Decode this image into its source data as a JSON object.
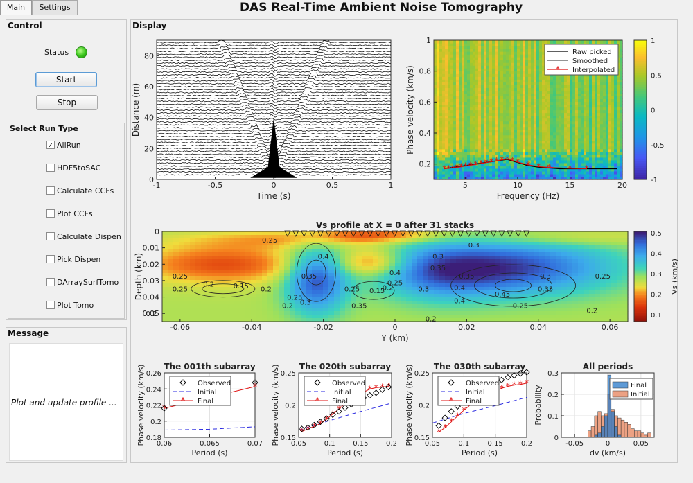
{
  "tabs": [
    {
      "label": "Main"
    },
    {
      "label": "Settings"
    }
  ],
  "app_title": "DAS Real-Time Ambient Noise Tomography",
  "control": {
    "title": "Control",
    "status_label": "Status",
    "status_color": "#39c51b",
    "start_label": "Start",
    "stop_label": "Stop",
    "runtype_title": "Select Run Type",
    "options": [
      {
        "label": "AllRun",
        "checked": true
      },
      {
        "label": "HDF5toSAC",
        "checked": false
      },
      {
        "label": "Calculate CCFs",
        "checked": false
      },
      {
        "label": "Plot CCFs",
        "checked": false
      },
      {
        "label": "Calculate Dispen",
        "checked": false
      },
      {
        "label": "Pick Dispen",
        "checked": false
      },
      {
        "label": "DArraySurfTomo",
        "checked": false
      },
      {
        "label": "Plot Tomo",
        "checked": false
      }
    ]
  },
  "message": {
    "title": "Message",
    "text": "Plot and update profile ..."
  },
  "display": {
    "title": "Display"
  },
  "chart_data": [
    {
      "type": "line",
      "id": "ccf",
      "title": "",
      "xlabel": "Time (s)",
      "ylabel": "Distance (m)",
      "xlim": [
        -1,
        1
      ],
      "ylim": [
        0,
        90
      ],
      "xticks": [
        "-1",
        "-0.5",
        "0",
        "0.5",
        "1"
      ],
      "yticks": [
        "0",
        "20",
        "40",
        "60",
        "80"
      ],
      "n_traces": 46
    },
    {
      "type": "heatmap",
      "id": "dispersion",
      "title": "",
      "xlabel": "Frequency (Hz)",
      "ylabel": "Phase velocity (km/s)",
      "xlim": [
        2,
        20
      ],
      "ylim": [
        0.1,
        1
      ],
      "xticks": [
        "5",
        "10",
        "15",
        "20"
      ],
      "yticks": [
        "0.2",
        "0.4",
        "0.6",
        "0.8",
        "1"
      ],
      "colorbar_ticks": [
        "1",
        "0.5",
        "0",
        "-0.5",
        "-1"
      ],
      "legend": [
        "Raw picked",
        "Smoothed",
        "Interpolated"
      ],
      "series": [
        {
          "name": "Raw picked",
          "x": [
            3,
            4,
            5,
            6,
            7,
            8,
            9,
            10,
            11,
            12,
            13,
            14,
            15,
            16,
            17,
            18,
            19.5
          ],
          "y": [
            0.17,
            0.18,
            0.19,
            0.2,
            0.21,
            0.22,
            0.23,
            0.21,
            0.19,
            0.18,
            0.175,
            0.17,
            0.17,
            0.17,
            0.17,
            0.17,
            0.17
          ]
        },
        {
          "name": "Interpolated",
          "x": [
            3,
            3.4,
            3.8,
            4.2,
            4.6,
            5,
            5.5,
            6,
            6.5,
            7,
            7.5,
            8,
            8.5,
            9,
            9.5,
            10,
            11,
            12,
            13,
            15,
            16.6
          ],
          "y": [
            0.17,
            0.172,
            0.175,
            0.178,
            0.182,
            0.187,
            0.192,
            0.197,
            0.203,
            0.209,
            0.215,
            0.221,
            0.227,
            0.232,
            0.224,
            0.212,
            0.195,
            0.183,
            0.178,
            0.172,
            0.17
          ]
        }
      ]
    },
    {
      "type": "heatmap",
      "id": "vs_profile",
      "title": "Vs profile at X = 0 after 31 stacks",
      "xlabel": "Y (km)",
      "ylabel": "Depth (km)",
      "xlim": [
        -0.065,
        0.065
      ],
      "ylim": [
        0.055,
        0
      ],
      "xticks": [
        "-0.06",
        "-0.04",
        "-0.02",
        "0",
        "0.02",
        "0.04",
        "0.06"
      ],
      "yticks": [
        "0",
        "0.01",
        "0.02",
        "0.03",
        "0.04",
        "0.05"
      ],
      "colorbar_label": "Vs (km/s)",
      "colorbar_ticks": [
        "0.5",
        "0.4",
        "0.3",
        "0.2",
        "0.1"
      ],
      "contour_labels": [
        "0.2",
        "0.2",
        "0.25",
        "0.25",
        "0.15",
        "0.2",
        "0.25",
        "0.3",
        "0.35",
        "0.4",
        "0.3",
        "0.35",
        "0.25",
        "0.2",
        "0.15",
        "0.25",
        "0.3",
        "0.35",
        "0.4",
        "0.4",
        "0.45",
        "0.35",
        "0.3",
        "0.25",
        "0.25",
        "0.2",
        "0.3",
        "0.35",
        "0.4",
        "0.25",
        "0.2",
        "0.2"
      ]
    },
    {
      "type": "line",
      "id": "sub001",
      "title": "The 001th subarray",
      "xlabel": "Period (s)",
      "ylabel": "Phase velocity (km/s)",
      "xlim": [
        0.06,
        0.07
      ],
      "ylim": [
        0.18,
        0.26
      ],
      "xticks": [
        "0.06",
        "0.065",
        "0.07"
      ],
      "yticks": [
        "0.18",
        "0.2",
        "0.22",
        "0.24",
        "0.26"
      ],
      "legend": [
        "Observed",
        "Initial",
        "Final"
      ],
      "series": [
        {
          "name": "Observed",
          "x": [
            0.06,
            0.07
          ],
          "y": [
            0.216,
            0.248
          ]
        },
        {
          "name": "Initial",
          "x": [
            0.06,
            0.065,
            0.07
          ],
          "y": [
            0.189,
            0.19,
            0.193
          ]
        },
        {
          "name": "Final",
          "x": [
            0.06,
            0.07
          ],
          "y": [
            0.216,
            0.243
          ]
        }
      ]
    },
    {
      "type": "line",
      "id": "sub020",
      "title": "The 020th subarray",
      "xlabel": "Period (s)",
      "ylabel": "Phase velocity (km/s)",
      "xlim": [
        0.05,
        0.2
      ],
      "ylim": [
        0.15,
        0.25
      ],
      "xticks": [
        "0.05",
        "0.1",
        "0.15",
        "0.2"
      ],
      "yticks": [
        "0.15",
        "0.2",
        "0.25"
      ],
      "legend": [
        "Observed",
        "Initial",
        "Final"
      ],
      "series": [
        {
          "name": "Observed",
          "x": [
            0.055,
            0.065,
            0.075,
            0.085,
            0.095,
            0.105,
            0.115,
            0.125,
            0.135,
            0.145,
            0.155,
            0.165,
            0.175,
            0.185,
            0.195
          ],
          "y": [
            0.163,
            0.165,
            0.169,
            0.174,
            0.179,
            0.185,
            0.19,
            0.196,
            0.201,
            0.206,
            0.211,
            0.215,
            0.219,
            0.224,
            0.228
          ]
        },
        {
          "name": "Initial",
          "x": [
            0.05,
            0.1,
            0.15,
            0.2
          ],
          "y": [
            0.161,
            0.176,
            0.19,
            0.203
          ]
        },
        {
          "name": "Final",
          "x": [
            0.055,
            0.065,
            0.075,
            0.085,
            0.095,
            0.105,
            0.115,
            0.125,
            0.135,
            0.145,
            0.155,
            0.165,
            0.175,
            0.185,
            0.195
          ],
          "y": [
            0.159,
            0.163,
            0.167,
            0.171,
            0.178,
            0.186,
            0.194,
            0.202,
            0.209,
            0.215,
            0.22,
            0.225,
            0.227,
            0.228,
            0.229
          ]
        }
      ]
    },
    {
      "type": "line",
      "id": "sub030",
      "title": "The 030th subarray",
      "xlabel": "Period (s)",
      "ylabel": "Phase velocity (km/s)",
      "xlim": [
        0.05,
        0.2
      ],
      "ylim": [
        0.15,
        0.25
      ],
      "xticks": [
        "0.05",
        "0.1",
        "0.15",
        "0.2"
      ],
      "yticks": [
        "0.15",
        "0.2",
        "0.25"
      ],
      "legend": [
        "Observed",
        "Initial",
        "Final"
      ],
      "series": [
        {
          "name": "Observed",
          "x": [
            0.06,
            0.07,
            0.08,
            0.09,
            0.1,
            0.11,
            0.12,
            0.13,
            0.14,
            0.15,
            0.16,
            0.17,
            0.18,
            0.19,
            0.2
          ],
          "y": [
            0.168,
            0.18,
            0.19,
            0.198,
            0.205,
            0.211,
            0.217,
            0.223,
            0.229,
            0.234,
            0.239,
            0.243,
            0.246,
            0.249,
            0.251
          ]
        },
        {
          "name": "Initial",
          "x": [
            0.05,
            0.1,
            0.15,
            0.2
          ],
          "y": [
            0.172,
            0.187,
            0.199,
            0.212
          ]
        },
        {
          "name": "Final",
          "x": [
            0.06,
            0.07,
            0.08,
            0.09,
            0.1,
            0.11,
            0.12,
            0.13,
            0.14,
            0.15,
            0.16,
            0.17,
            0.18,
            0.19,
            0.2
          ],
          "y": [
            0.158,
            0.165,
            0.174,
            0.183,
            0.192,
            0.2,
            0.207,
            0.213,
            0.218,
            0.222,
            0.226,
            0.229,
            0.231,
            0.232,
            0.234
          ]
        }
      ]
    },
    {
      "type": "bar",
      "id": "hist",
      "title": "All periods",
      "xlabel": "dv (km/s)",
      "ylabel": "Probability",
      "xlim": [
        -0.07,
        0.07
      ],
      "ylim": [
        0,
        0.3
      ],
      "xticks": [
        "-0.05",
        "0",
        "0.05"
      ],
      "yticks": [
        "0",
        "0.1",
        "0.2",
        "0.3"
      ],
      "legend": [
        "Final",
        "Initial"
      ],
      "bin_width": 0.005,
      "bin_starts": [
        -0.03,
        -0.025,
        -0.02,
        -0.015,
        -0.01,
        -0.005,
        0,
        0.005,
        0.01,
        0.015,
        0.02,
        0.025,
        0.03,
        0.035,
        0.04,
        0.045,
        0.05,
        0.055,
        0.06
      ],
      "series": [
        {
          "name": "Initial",
          "values": [
            0.03,
            0.05,
            0.1,
            0.12,
            0.1,
            0.11,
            0.2,
            0.13,
            0.1,
            0.09,
            0.08,
            0.07,
            0.06,
            0.04,
            0.03,
            0.03,
            0.02,
            0.01,
            0.02
          ]
        },
        {
          "name": "Final",
          "values": [
            0,
            0,
            0.01,
            0.02,
            0.05,
            0.1,
            0.29,
            0.12,
            0.05,
            0.01,
            0,
            0,
            0,
            0,
            0,
            0,
            0,
            0,
            0
          ]
        }
      ]
    }
  ]
}
